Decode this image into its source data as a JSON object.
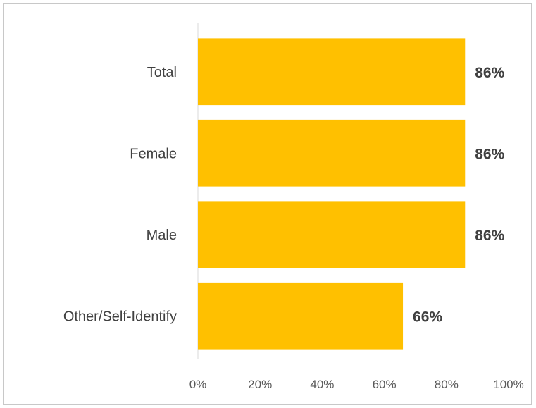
{
  "chart_data": {
    "type": "bar",
    "orientation": "horizontal",
    "categories": [
      "Total",
      "Female",
      "Male",
      "Other/Self-Identify"
    ],
    "values": [
      86,
      86,
      86,
      66
    ],
    "data_labels": [
      "86%",
      "86%",
      "86%",
      "66%"
    ],
    "xlim": [
      0,
      100
    ],
    "x_ticks": [
      "0%",
      "20%",
      "40%",
      "60%",
      "80%",
      "100%"
    ],
    "title": "",
    "xlabel": "",
    "ylabel": "",
    "grid": false,
    "legend": "none",
    "bar_color": "#FFC000"
  }
}
